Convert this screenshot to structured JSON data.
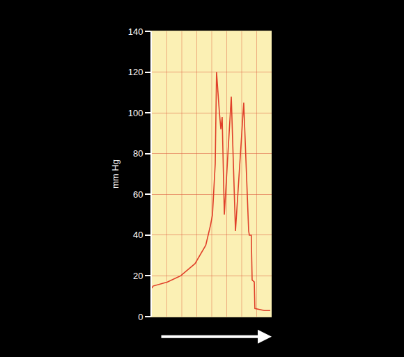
{
  "chart_data": {
    "type": "line",
    "y_label": "mm Hg",
    "x": [
      0,
      1,
      13,
      24,
      36,
      45,
      49,
      50.6,
      52.9,
      54,
      56.4,
      57.6,
      58.7,
      60.5,
      66.3,
      69.8,
      76.7,
      80.8,
      81.4,
      83,
      83.7,
      85.5,
      86,
      94,
      98.8
    ],
    "values": [
      14,
      15,
      17,
      20,
      26,
      35,
      45,
      50,
      75,
      120,
      100,
      92,
      98,
      50,
      108,
      42,
      105,
      42,
      40,
      40,
      18,
      17,
      4,
      3,
      3
    ],
    "color": "#e0402a",
    "xlim": [
      0,
      100
    ],
    "ylim": [
      0,
      140
    ],
    "yticks": [
      0,
      20,
      40,
      60,
      80,
      100,
      120,
      140
    ],
    "grid": true,
    "tick_labels": "y"
  }
}
